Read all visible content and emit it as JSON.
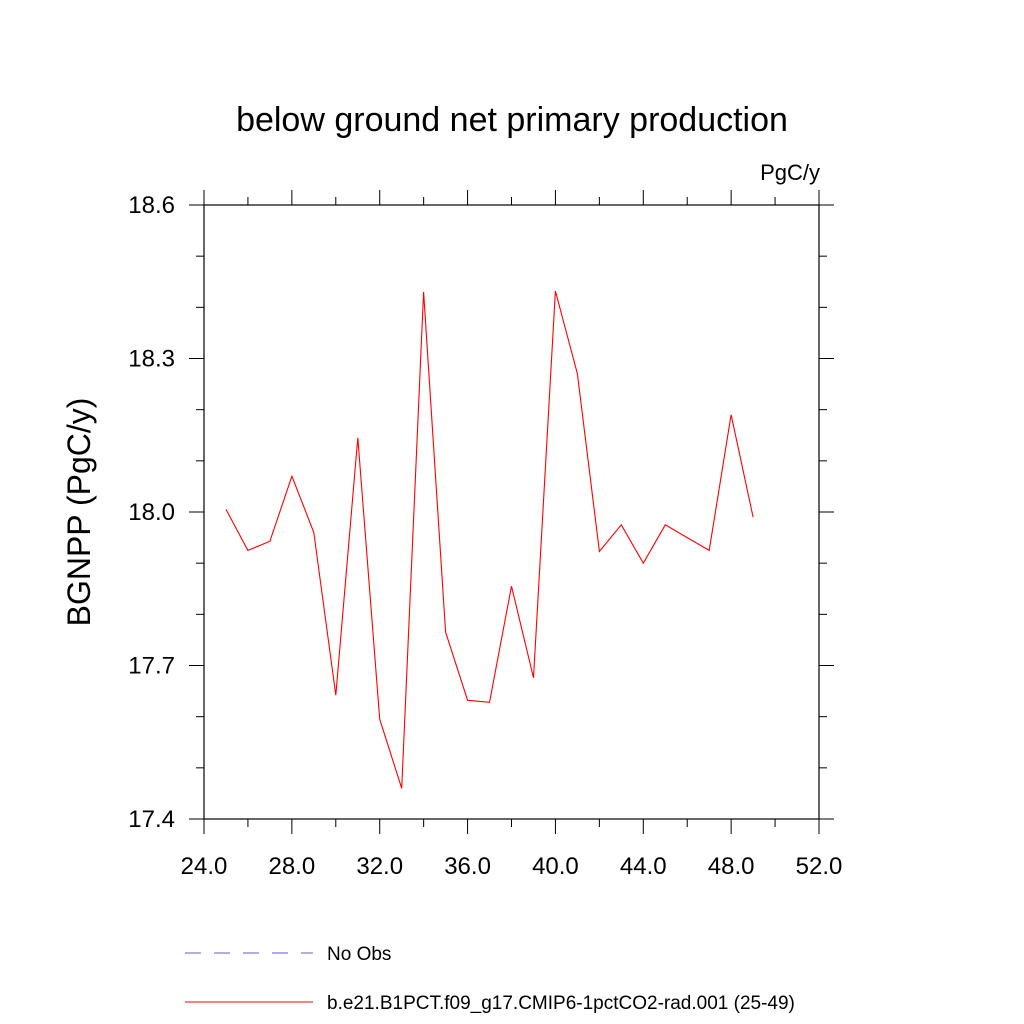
{
  "chart_data": {
    "type": "line",
    "title": "below ground net primary production",
    "units_label": "PgC/y",
    "ylabel": "BGNPP  (PgC/y)",
    "xlabel": "",
    "xlim": [
      24,
      52
    ],
    "ylim": [
      17.4,
      18.6
    ],
    "x_ticks": [
      24,
      28,
      32,
      36,
      40,
      44,
      48,
      52
    ],
    "x_tick_labels": [
      "24.0",
      "28.0",
      "32.0",
      "36.0",
      "40.0",
      "44.0",
      "48.0",
      "52.0"
    ],
    "x_minor_ticks": [
      26,
      30,
      34,
      38,
      42,
      46,
      50
    ],
    "y_ticks": [
      17.4,
      17.7,
      18.0,
      18.3,
      18.6
    ],
    "y_tick_labels": [
      "17.4",
      "17.7",
      "18.0",
      "18.3",
      "18.6"
    ],
    "y_minor_ticks": [
      17.5,
      17.6,
      17.8,
      17.9,
      18.1,
      18.2,
      18.4,
      18.5
    ],
    "grid": false,
    "legend_position": "bottom",
    "series": [
      {
        "name": "b.e21.B1PCT.f09_g17.CMIP6-1pctCO2-rad.001 (25-49)",
        "color": "#ff0000",
        "style": "solid",
        "x": [
          25,
          26,
          27,
          28,
          29,
          30,
          31,
          32,
          33,
          34,
          35,
          36,
          37,
          38,
          39,
          40,
          41,
          42,
          43,
          44,
          45,
          46,
          47,
          48,
          49
        ],
        "y": [
          18.005,
          17.925,
          17.943,
          18.07,
          17.96,
          17.642,
          18.145,
          17.595,
          17.46,
          18.43,
          17.765,
          17.632,
          17.628,
          17.855,
          17.676,
          18.432,
          18.27,
          17.923,
          17.975,
          17.9,
          17.975,
          17.95,
          17.925,
          18.19,
          17.99
        ]
      }
    ],
    "legend": [
      {
        "label": "No Obs",
        "color": "#6a5acd",
        "style": "dashed"
      },
      {
        "label": "b.e21.B1PCT.f09_g17.CMIP6-1pctCO2-rad.001 (25-49)",
        "color": "#ff0000",
        "style": "solid"
      }
    ]
  }
}
